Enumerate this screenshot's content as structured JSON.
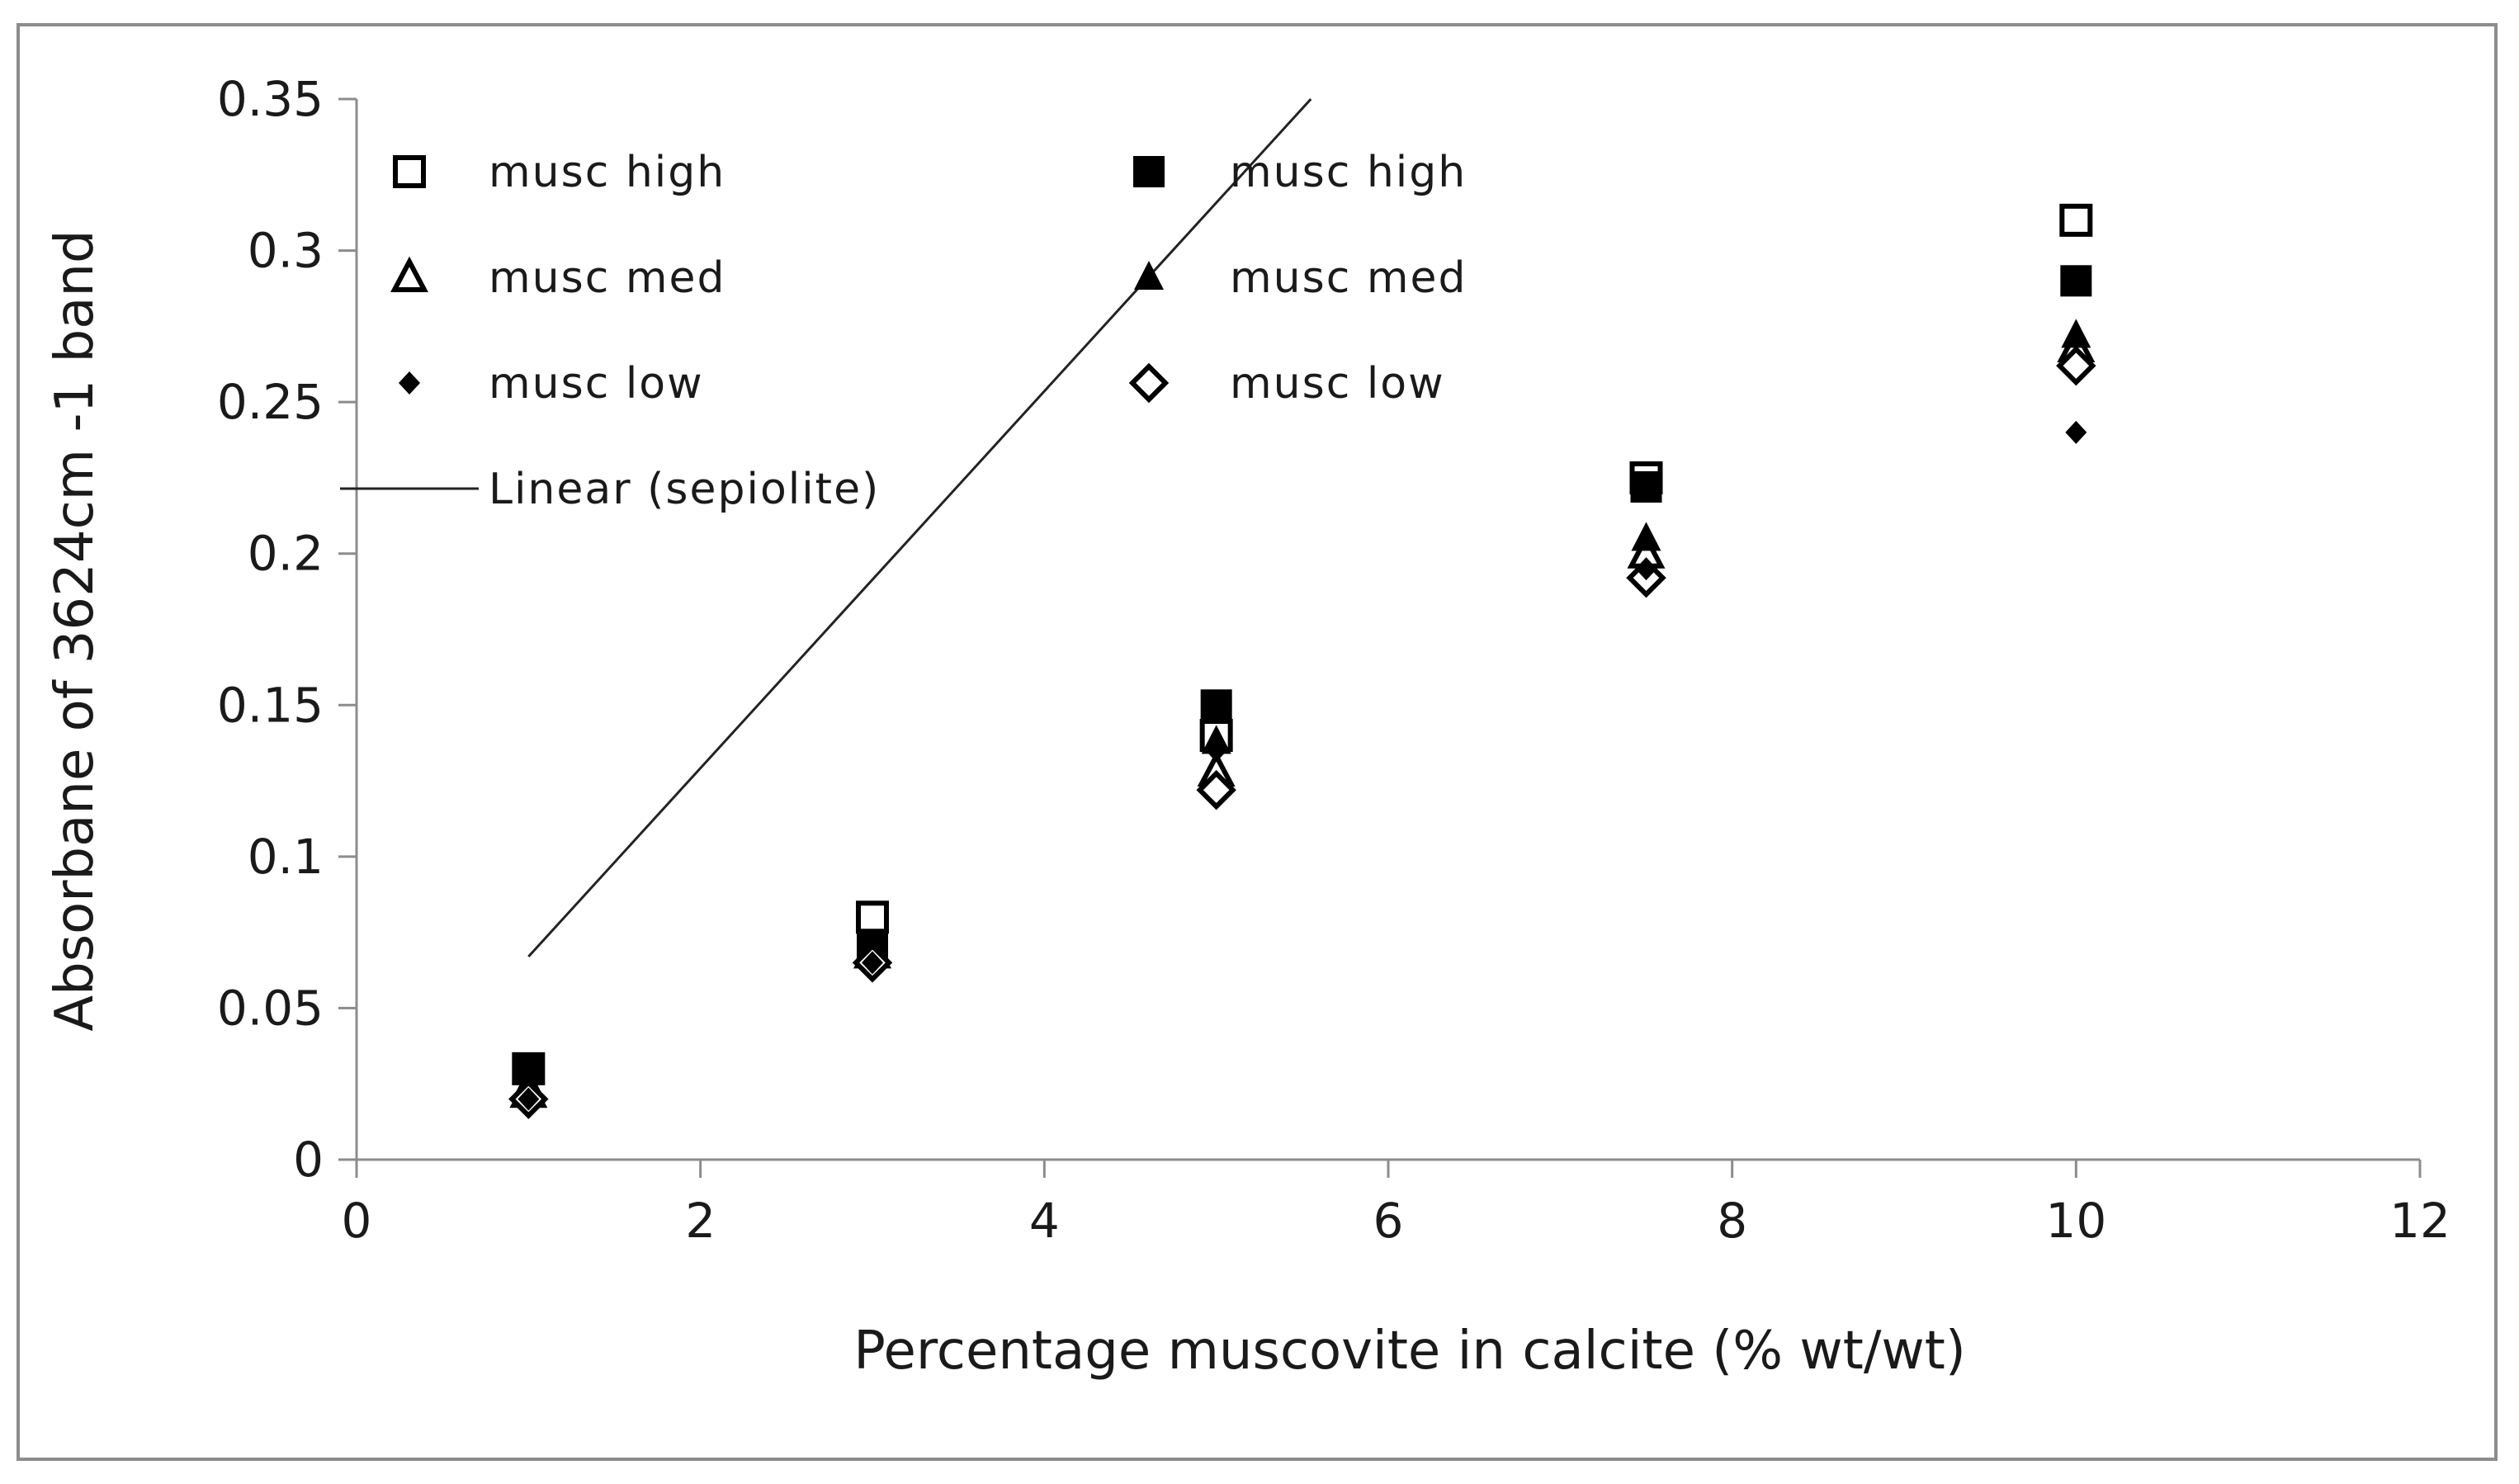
{
  "chart_data": {
    "type": "scatter",
    "title": "",
    "xlabel": "Percentage muscovite in calcite (% wt/wt)",
    "ylabel": "Absorbane of 3624cm -1 band",
    "xlim": [
      0,
      12
    ],
    "ylim": [
      0,
      0.35
    ],
    "xticks": [
      "0",
      "2",
      "4",
      "6",
      "8",
      "10",
      "12"
    ],
    "yticks": [
      "0",
      "0.05",
      "0.1",
      "0.15",
      "0.2",
      "0.25",
      "0.3",
      "0.35"
    ],
    "grid": false,
    "legend_position": "top-left",
    "series": [
      {
        "name": "musc high",
        "marker": "square-open",
        "x": [
          1,
          3,
          5,
          7.5,
          10
        ],
        "y": [
          0.03,
          0.08,
          0.14,
          0.225,
          0.31
        ]
      },
      {
        "name": "musc med",
        "marker": "triangle-open",
        "x": [
          1,
          3,
          5,
          7.5,
          10
        ],
        "y": [
          0.022,
          0.068,
          0.128,
          0.2,
          0.268
        ]
      },
      {
        "name": "musc low",
        "marker": "diamond-small-filled",
        "x": [
          1,
          3,
          5,
          7.5,
          10
        ],
        "y": [
          0.02,
          0.065,
          0.135,
          0.195,
          0.24
        ]
      },
      {
        "name": "musc high",
        "marker": "square-filled",
        "x": [
          1,
          3,
          5,
          7.5,
          10
        ],
        "y": [
          0.03,
          0.07,
          0.15,
          0.222,
          0.29
        ]
      },
      {
        "name": "musc med",
        "marker": "triangle-filled",
        "x": [
          1,
          3,
          5,
          7.5,
          10
        ],
        "y": [
          0.025,
          0.07,
          0.138,
          0.205,
          0.272
        ]
      },
      {
        "name": "musc low",
        "marker": "diamond-open",
        "x": [
          1,
          3,
          5,
          7.5,
          10
        ],
        "y": [
          0.02,
          0.065,
          0.122,
          0.192,
          0.262
        ]
      }
    ],
    "trendline": {
      "name": "Linear (sepiolite)",
      "x": [
        1,
        5.55
      ],
      "y": [
        0.067,
        0.35
      ]
    }
  }
}
